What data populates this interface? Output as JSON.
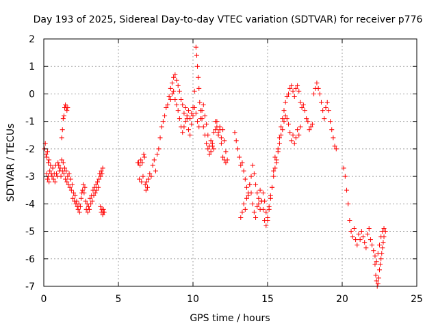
{
  "chart_data": {
    "type": "scatter",
    "title": "Day 193 of 2025, Sidereal Day-to-day VTEC variation (SDTVAR) for receiver p776",
    "xlabel": "GPS time / hours",
    "ylabel": "SDTVAR / TECUs",
    "xlim": [
      0,
      25
    ],
    "ylim": [
      -7,
      2
    ],
    "xticks": [
      "0",
      "5",
      "10",
      "15",
      "20",
      "25"
    ],
    "yticks": [
      "2",
      "1",
      "0",
      "-1",
      "-2",
      "-3",
      "-4",
      "-5",
      "-6",
      "-7"
    ],
    "grid": true,
    "marker": "+",
    "color": "#ff0000",
    "series": [
      {
        "name": "SDTVAR",
        "x": [
          0.05,
          0.1,
          0.15,
          0.2,
          0.25,
          0.3,
          0.35,
          0.4,
          0.45,
          0.5,
          0.55,
          0.6,
          0.65,
          0.7,
          0.75,
          0.8,
          0.85,
          0.9,
          0.95,
          1.0,
          1.05,
          1.1,
          1.15,
          1.2,
          1.25,
          1.3,
          1.35,
          1.4,
          1.45,
          1.5,
          1.55,
          1.6,
          1.65,
          1.7,
          1.75,
          1.8,
          1.85,
          1.9,
          1.95,
          2.0,
          2.05,
          2.1,
          2.15,
          2.2,
          2.25,
          2.3,
          2.35,
          2.4,
          2.45,
          2.5,
          2.55,
          2.6,
          2.65,
          2.7,
          2.75,
          2.8,
          2.85,
          2.9,
          2.95,
          3.0,
          3.05,
          3.1,
          3.15,
          3.2,
          3.25,
          3.3,
          3.35,
          3.4,
          3.45,
          3.5,
          3.55,
          3.6,
          3.65,
          3.7,
          3.75,
          3.8,
          3.85,
          3.9,
          3.95,
          4.0,
          4.05,
          1.2,
          1.25,
          1.3,
          1.35,
          1.4,
          1.45,
          1.5,
          1.55,
          1.6,
          0.2,
          0.25,
          0.3,
          0.35,
          3.8,
          3.85,
          3.9,
          3.95,
          4.0,
          6.3,
          6.35,
          6.4,
          6.45,
          6.5,
          6.55,
          6.6,
          6.65,
          6.7,
          6.75,
          6.8,
          6.85,
          6.9,
          6.95,
          7.0,
          7.1,
          7.2,
          7.3,
          7.4,
          7.5,
          7.6,
          7.7,
          7.8,
          7.9,
          8.0,
          8.1,
          8.2,
          8.3,
          8.4,
          8.5,
          8.6,
          8.7,
          8.8,
          8.9,
          9.0,
          9.1,
          9.2,
          9.3,
          9.4,
          9.5,
          9.6,
          9.7,
          9.8,
          9.9,
          10.0,
          10.1,
          10.2,
          10.25,
          10.3,
          10.35,
          10.4,
          10.45,
          10.5,
          10.6,
          10.7,
          10.8,
          10.9,
          11.0,
          11.1,
          11.2,
          11.3,
          11.4,
          11.5,
          11.6,
          11.7,
          11.8,
          11.9,
          12.0,
          12.1,
          12.2,
          8.5,
          8.6,
          8.7,
          8.8,
          8.9,
          9.0,
          9.1,
          9.2,
          9.3,
          9.4,
          9.5,
          9.6,
          9.7,
          9.8,
          9.9,
          10.0,
          10.1,
          10.2,
          10.3,
          10.4,
          10.5,
          10.6,
          10.7,
          10.8,
          10.9,
          11.0,
          11.1,
          11.2,
          11.3,
          11.4,
          11.5,
          11.6,
          11.7,
          11.8,
          11.9,
          12.0,
          12.1,
          12.2,
          12.3,
          12.8,
          12.9,
          13.0,
          13.1,
          13.2,
          13.3,
          13.4,
          13.5,
          13.6,
          13.7,
          13.8,
          13.9,
          14.0,
          14.1,
          14.2,
          14.3,
          14.4,
          14.5,
          14.6,
          14.7,
          14.8,
          14.9,
          15.0,
          15.1,
          15.2,
          15.3,
          15.4,
          15.5,
          15.6,
          15.7,
          15.8,
          15.9,
          16.0,
          16.1,
          16.2,
          16.3,
          16.4,
          16.5,
          16.6,
          16.7,
          16.8,
          16.9,
          17.0,
          17.1,
          17.2,
          17.3,
          17.4,
          17.5,
          17.6,
          17.7,
          17.8,
          17.9,
          18.0,
          18.1,
          18.2,
          18.3,
          18.4,
          18.5,
          18.6,
          18.7,
          18.8,
          18.9,
          19.0,
          19.1,
          19.2,
          19.3,
          19.4,
          19.5,
          19.6,
          13.2,
          13.3,
          13.4,
          13.5,
          13.6,
          13.7,
          13.8,
          13.9,
          14.0,
          14.1,
          14.2,
          14.3,
          14.4,
          14.5,
          14.6,
          14.7,
          14.8,
          14.9,
          15.0,
          15.1,
          15.2,
          15.3,
          15.4,
          15.5,
          15.6,
          15.7,
          15.8,
          15.9,
          16.0,
          16.1,
          16.2,
          16.3,
          16.4,
          16.5,
          16.6,
          16.7,
          16.8,
          16.9,
          17.0,
          17.1,
          17.2,
          20.1,
          20.2,
          20.3,
          20.4,
          20.5,
          20.6,
          20.7,
          20.8,
          20.9,
          21.0,
          21.1,
          21.2,
          21.3,
          21.4,
          21.5,
          21.6,
          21.7,
          21.8,
          21.9,
          22.0,
          22.1,
          22.2,
          22.3,
          22.4,
          22.5,
          22.6,
          22.7,
          22.8,
          22.9,
          22.2,
          22.25,
          22.3,
          22.35,
          22.4,
          22.45,
          22.5,
          22.55,
          22.6,
          22.65,
          22.7,
          22.75,
          22.8
        ],
        "y": [
          -2.0,
          -1.8,
          -2.2,
          -2.3,
          -2.1,
          -2.5,
          -2.4,
          -2.8,
          -2.6,
          -2.9,
          -3.0,
          -2.7,
          -3.1,
          -2.9,
          -3.2,
          -2.6,
          -2.9,
          -3.0,
          -2.5,
          -2.6,
          -2.8,
          -2.7,
          -3.0,
          -2.4,
          -2.8,
          -2.5,
          -2.9,
          -2.7,
          -3.1,
          -2.8,
          -3.2,
          -3.0,
          -3.3,
          -2.9,
          -3.4,
          -3.1,
          -3.5,
          -3.3,
          -3.8,
          -3.6,
          -3.9,
          -3.7,
          -4.0,
          -3.9,
          -4.1,
          -4.2,
          -4.0,
          -4.3,
          -4.1,
          -3.8,
          -3.6,
          -3.5,
          -3.3,
          -3.6,
          -3.4,
          -3.9,
          -4.2,
          -4.0,
          -4.3,
          -4.1,
          -4.2,
          -3.8,
          -4.0,
          -3.7,
          -3.9,
          -3.5,
          -3.7,
          -3.4,
          -3.6,
          -3.3,
          -3.5,
          -3.2,
          -3.4,
          -3.1,
          -2.9,
          -3.0,
          -2.8,
          -2.9,
          -2.7,
          -4.2,
          -4.3,
          -1.6,
          -1.3,
          -0.9,
          -0.8,
          -0.5,
          -0.4,
          -0.5,
          -0.6,
          -0.5,
          -2.9,
          -3.1,
          -3.0,
          -3.2,
          -4.1,
          -4.3,
          -4.2,
          -4.4,
          -4.3,
          -2.5,
          -2.5,
          -3.1,
          -2.6,
          -2.4,
          -3.2,
          -2.5,
          -3.0,
          -2.2,
          -2.3,
          -3.3,
          -3.5,
          -3.2,
          -3.4,
          -3.1,
          -2.9,
          -3.0,
          -2.6,
          -2.4,
          -2.8,
          -2.2,
          -2.0,
          -1.6,
          -1.2,
          -1.0,
          -0.8,
          -0.5,
          -0.4,
          -0.1,
          0.2,
          0.4,
          0.6,
          0.7,
          0.5,
          0.3,
          0.1,
          -0.2,
          -0.4,
          -0.7,
          -0.5,
          -0.8,
          -0.6,
          -0.9,
          -0.7,
          -0.5,
          0.1,
          1.7,
          1.4,
          1.0,
          0.6,
          0.2,
          -0.3,
          -0.6,
          -0.9,
          -1.2,
          -1.5,
          -1.8,
          -2.0,
          -2.2,
          -1.7,
          -1.9,
          -1.4,
          -1.0,
          -1.2,
          -1.5,
          -1.3,
          -1.8,
          -2.3,
          -2.4,
          -2.5,
          -0.2,
          0.0,
          0.1,
          -0.2,
          -0.4,
          -0.6,
          -0.9,
          -1.2,
          -1.4,
          -1.2,
          -1.0,
          -0.9,
          -1.3,
          -1.5,
          -1.1,
          -0.8,
          -0.5,
          -0.7,
          -1.0,
          -1.2,
          -0.9,
          -0.6,
          -0.4,
          -0.8,
          -1.1,
          -1.5,
          -1.9,
          -2.1,
          -1.8,
          -2.0,
          -1.3,
          -1.0,
          -1.4,
          -1.2,
          -1.6,
          -1.3,
          -1.7,
          -2.1,
          -2.4,
          -1.4,
          -1.7,
          -2.0,
          -2.3,
          -2.6,
          -2.5,
          -2.8,
          -3.1,
          -3.4,
          -3.7,
          -3.3,
          -3.0,
          -2.6,
          -2.9,
          -3.3,
          -3.6,
          -4.0,
          -4.2,
          -3.9,
          -3.6,
          -3.9,
          -4.3,
          -4.6,
          -4.2,
          -3.8,
          -3.4,
          -2.8,
          -2.3,
          -2.5,
          -2.0,
          -1.6,
          -1.2,
          -0.9,
          -0.6,
          -0.3,
          -0.1,
          0.0,
          0.2,
          0.3,
          0.1,
          -0.1,
          0.2,
          0.3,
          0.1,
          -0.3,
          -0.5,
          -0.4,
          -0.6,
          -0.9,
          -1.0,
          -1.3,
          -1.2,
          -1.1,
          0.0,
          0.2,
          0.4,
          0.2,
          0.0,
          -0.3,
          -0.6,
          -0.9,
          -0.5,
          -0.3,
          -0.6,
          -1.0,
          -1.3,
          -1.6,
          -1.9,
          -2.0,
          -4.5,
          -4.3,
          -4.0,
          -4.2,
          -3.8,
          -3.6,
          -3.3,
          -3.6,
          -4.0,
          -4.3,
          -4.5,
          -4.1,
          -3.8,
          -3.5,
          -3.9,
          -4.2,
          -4.6,
          -4.8,
          -4.5,
          -4.1,
          -3.7,
          -3.4,
          -3.0,
          -2.7,
          -2.4,
          -2.1,
          -1.8,
          -1.5,
          -1.3,
          -1.0,
          -0.8,
          -0.9,
          -1.1,
          -1.4,
          -1.7,
          -1.5,
          -1.8,
          -1.6,
          -1.3,
          -1.5,
          -1.2,
          -2.7,
          -3.0,
          -3.5,
          -4.0,
          -4.6,
          -5.0,
          -5.2,
          -4.9,
          -5.3,
          -5.5,
          -5.1,
          -5.3,
          -5.0,
          -5.2,
          -5.4,
          -5.6,
          -5.1,
          -4.9,
          -5.3,
          -5.5,
          -5.7,
          -5.9,
          -6.1,
          -5.8,
          -5.5,
          -5.2,
          -5.0,
          -4.9,
          -5.0,
          -6.2,
          -6.6,
          -6.8,
          -7.0,
          -6.9,
          -6.7,
          -6.4,
          -6.2,
          -6.0,
          -5.8,
          -5.6,
          -5.4,
          -5.2
        ]
      }
    ]
  }
}
